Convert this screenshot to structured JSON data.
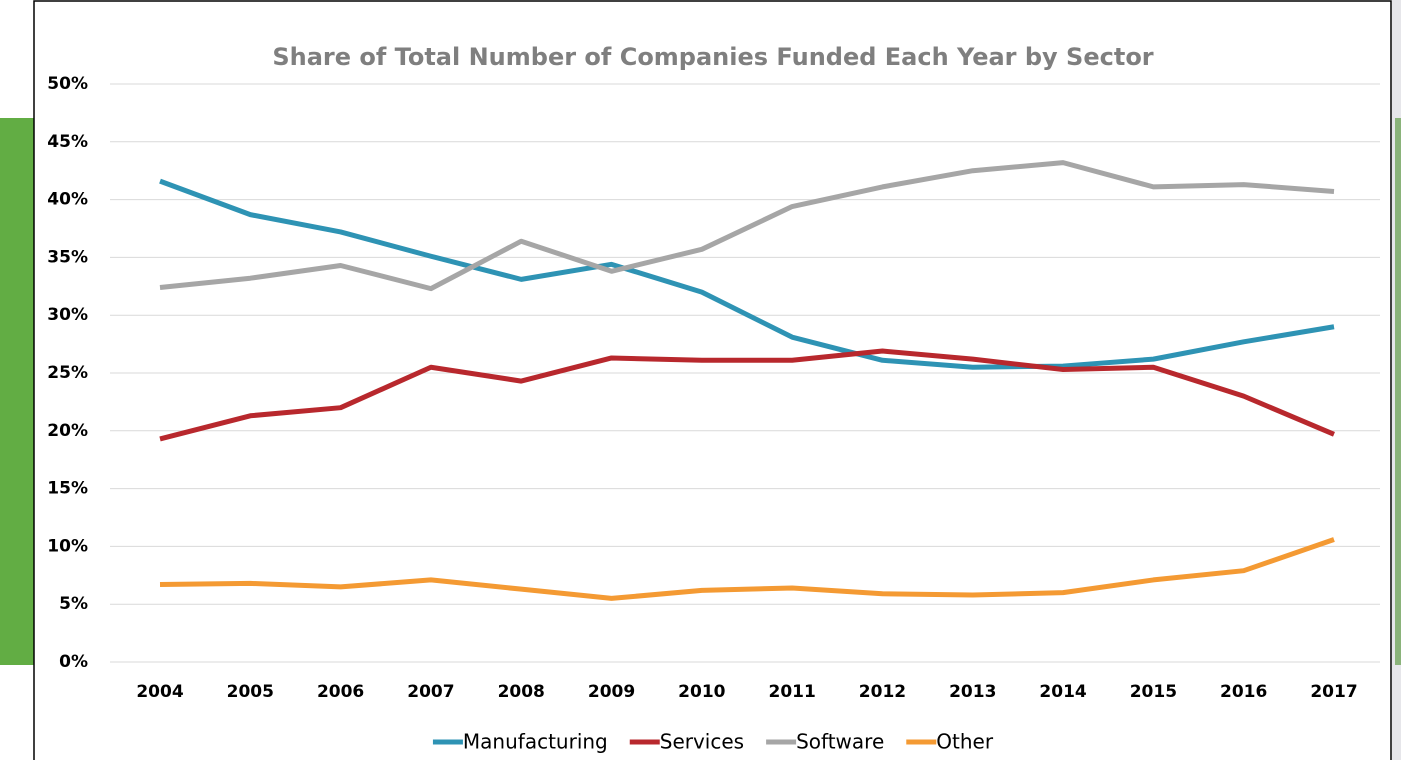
{
  "chart_data": {
    "type": "line",
    "title": "Share of Total Number of Companies Funded Each Year by Sector",
    "categories": [
      "2004",
      "2005",
      "2006",
      "2007",
      "2008",
      "2009",
      "2010",
      "2011",
      "2012",
      "2013",
      "2014",
      "2015",
      "2016",
      "2017"
    ],
    "series": [
      {
        "name": "Manufacturing",
        "color": "#2e93b4",
        "values": [
          41.6,
          38.7,
          37.2,
          35.1,
          33.1,
          34.4,
          32.0,
          28.1,
          26.1,
          25.5,
          25.6,
          26.2,
          27.7,
          29.0
        ]
      },
      {
        "name": "Services",
        "color": "#b8282d",
        "values": [
          19.3,
          21.3,
          22.0,
          25.5,
          24.3,
          26.3,
          26.1,
          26.1,
          26.9,
          26.2,
          25.3,
          25.5,
          23.0,
          19.7
        ]
      },
      {
        "name": "Software",
        "color": "#a6a6a6",
        "values": [
          32.4,
          33.2,
          34.3,
          32.3,
          36.4,
          33.8,
          35.7,
          39.4,
          41.1,
          42.5,
          43.2,
          41.1,
          41.3,
          40.7
        ]
      },
      {
        "name": "Other",
        "color": "#f49a33",
        "values": [
          6.7,
          6.8,
          6.5,
          7.1,
          6.3,
          5.5,
          6.2,
          6.4,
          5.9,
          5.8,
          6.0,
          7.1,
          7.9,
          10.6
        ]
      }
    ],
    "ylim": [
      0,
      50
    ],
    "yticks": [
      {
        "value": 0,
        "label": "0%"
      },
      {
        "value": 5,
        "label": "5%"
      },
      {
        "value": 10,
        "label": "10%"
      },
      {
        "value": 15,
        "label": "15%"
      },
      {
        "value": 20,
        "label": "20%"
      },
      {
        "value": 25,
        "label": "25%"
      },
      {
        "value": 30,
        "label": "30%"
      },
      {
        "value": 35,
        "label": "35%"
      },
      {
        "value": 40,
        "label": "40%"
      },
      {
        "value": 45,
        "label": "45%"
      },
      {
        "value": 50,
        "label": "50%"
      }
    ],
    "grid": true,
    "legend": "bottom"
  }
}
